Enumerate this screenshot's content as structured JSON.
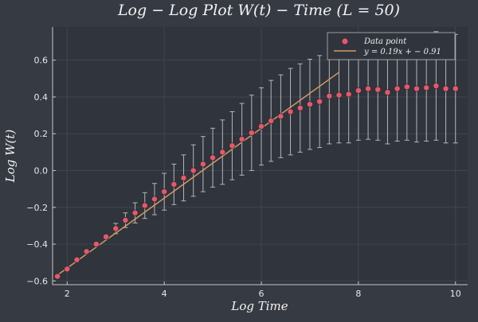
{
  "chart_data": {
    "type": "scatter",
    "title": "Log − Log Plot  W(t) − Time  (L = 50)",
    "xlabel": "Log Time",
    "ylabel": "Log W(t)",
    "xlim": [
      1.7,
      10.25
    ],
    "ylim": [
      -0.62,
      0.78
    ],
    "x_ticks": [
      2,
      4,
      6,
      8,
      10
    ],
    "y_ticks": [
      -0.6,
      -0.4,
      -0.2,
      0.0,
      0.2,
      0.4,
      0.6
    ],
    "y_tick_labels": [
      "−0.6",
      "−0.4",
      "−0.2",
      "0.0",
      "0.2",
      "0.4",
      "0.6"
    ],
    "grid": true,
    "legend_position": "top-right",
    "colors": {
      "background": "#363a43",
      "plot_area": "#30343c",
      "points": "#e8566b",
      "fit_line": "#d49a62",
      "error_bars": "#b4b6bc",
      "axes": "#c8c8c8",
      "grid": "#41454e"
    },
    "series": [
      {
        "name": "Data point",
        "kind": "scatter",
        "x": [
          1.8,
          2.0,
          2.2,
          2.4,
          2.6,
          2.8,
          3.0,
          3.2,
          3.4,
          3.6,
          3.8,
          4.0,
          4.2,
          4.4,
          4.6,
          4.8,
          5.0,
          5.2,
          5.4,
          5.6,
          5.8,
          6.0,
          6.2,
          6.4,
          6.6,
          6.8,
          7.0,
          7.2,
          7.4,
          7.6,
          7.8,
          8.0,
          8.2,
          8.4,
          8.6,
          8.8,
          9.0,
          9.2,
          9.4,
          9.6,
          9.8,
          10.0
        ],
        "y": [
          -0.575,
          -0.535,
          -0.485,
          -0.44,
          -0.4,
          -0.36,
          -0.315,
          -0.27,
          -0.23,
          -0.19,
          -0.155,
          -0.115,
          -0.075,
          -0.04,
          0.0,
          0.035,
          0.07,
          0.1,
          0.135,
          0.17,
          0.205,
          0.24,
          0.27,
          0.295,
          0.32,
          0.34,
          0.36,
          0.375,
          0.405,
          0.41,
          0.415,
          0.435,
          0.445,
          0.44,
          0.425,
          0.445,
          0.455,
          0.445,
          0.45,
          0.46,
          0.445,
          0.445
        ],
        "err": [
          0.0,
          0.0,
          0.0,
          0.0,
          0.0,
          0.0,
          0.028,
          0.04,
          0.055,
          0.07,
          0.085,
          0.1,
          0.11,
          0.125,
          0.14,
          0.15,
          0.16,
          0.175,
          0.185,
          0.195,
          0.205,
          0.21,
          0.22,
          0.225,
          0.235,
          0.24,
          0.245,
          0.25,
          0.26,
          0.26,
          0.265,
          0.27,
          0.275,
          0.275,
          0.28,
          0.285,
          0.29,
          0.29,
          0.29,
          0.295,
          0.295,
          0.295
        ]
      },
      {
        "name": "y = 0.19x + − 0.91",
        "kind": "line",
        "x": [
          1.8,
          7.6
        ],
        "y": [
          -0.568,
          0.534
        ]
      }
    ]
  }
}
